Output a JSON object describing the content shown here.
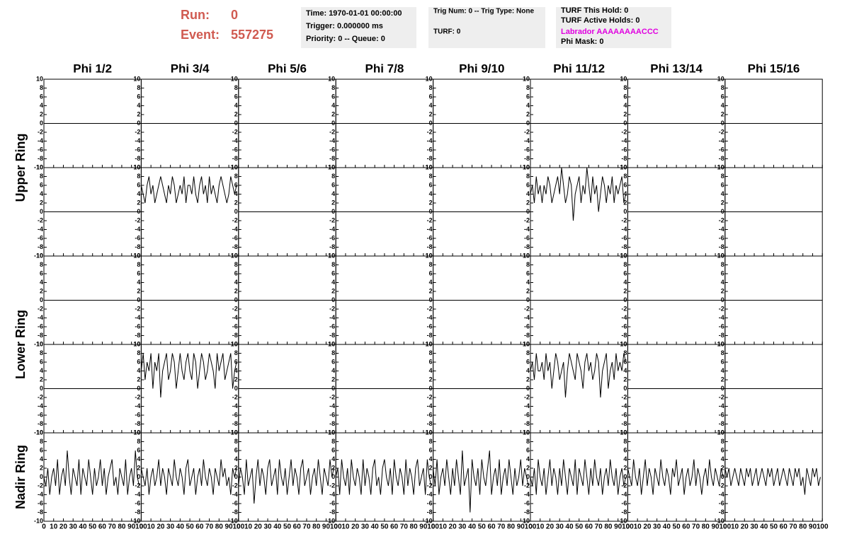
{
  "header": {
    "run_label": "Run:",
    "run": 0,
    "event_label": "Event:",
    "event": 557275,
    "info_boxes": [
      [
        "Time: 1970-01-01 00:00:00",
        "Trigger: 0.000000 ms",
        "Priority: 0 -- Queue: 0"
      ],
      [
        "Trig Num: 0 -- Trig Type: None",
        "TURF: 0"
      ],
      [
        "TURF This Hold: 0",
        "TURF Active Holds: 0",
        "Labrador AAAAAAAACCC",
        "Phi Mask: 0"
      ]
    ]
  },
  "chart_data": {
    "type": "line",
    "columns": [
      "Phi 1/2",
      "Phi 3/4",
      "Phi 5/6",
      "Phi 7/8",
      "Phi 9/10",
      "Phi 11/12",
      "Phi 13/14",
      "Phi 15/16"
    ],
    "rows": [
      "Upper Ring",
      "Lower Ring",
      "Nadir Ring"
    ],
    "xlim": [
      0,
      100
    ],
    "xticks": [
      0,
      10,
      20,
      30,
      40,
      50,
      60,
      70,
      80,
      90,
      100
    ],
    "ylim": [
      -10,
      10
    ],
    "yticks": [
      -10,
      -8,
      -6,
      -4,
      -2,
      0,
      2,
      4,
      6,
      8,
      10
    ],
    "color": "#000000",
    "x": [
      0,
      2,
      4,
      6,
      8,
      10,
      12,
      14,
      16,
      18,
      20,
      22,
      24,
      26,
      28,
      30,
      32,
      34,
      36,
      38,
      40,
      42,
      44,
      46,
      48,
      50,
      52,
      54,
      56,
      58,
      60,
      62,
      64,
      66,
      68,
      70,
      72,
      74,
      76,
      78,
      80,
      82,
      84,
      86,
      88,
      90,
      92,
      94,
      96,
      98
    ],
    "series": [
      {
        "x": [
          0,
          100
        ],
        "values": [
          0,
          0
        ]
      },
      {
        "x": [
          0,
          100
        ],
        "values": [
          0,
          0
        ]
      },
      {
        "x": [
          0,
          100
        ],
        "values": [
          0,
          0
        ]
      },
      {
        "x": [
          0,
          100
        ],
        "values": [
          0,
          0
        ]
      },
      {
        "x": [
          0,
          100
        ],
        "values": [
          0,
          0
        ]
      },
      {
        "x": [
          0,
          100
        ],
        "values": [
          0,
          0
        ]
      },
      {
        "x": [
          0,
          100
        ],
        "values": [
          0,
          0
        ]
      },
      {
        "x": [
          0,
          100
        ],
        "values": [
          0,
          0
        ]
      },
      {
        "x": [
          0,
          100
        ],
        "values": [
          0,
          0
        ]
      },
      {
        "values": [
          6,
          4,
          2,
          6,
          8,
          4,
          6,
          2,
          4,
          6,
          8,
          6,
          4,
          2,
          6,
          4,
          8,
          6,
          2,
          4,
          6,
          4,
          8,
          2,
          6,
          6,
          4,
          8,
          4,
          2,
          6,
          8,
          4,
          6,
          2,
          8,
          4,
          6,
          4,
          2,
          6,
          8,
          6,
          4,
          2,
          4,
          8,
          6,
          4,
          6
        ]
      },
      {
        "x": [
          0,
          100
        ],
        "values": [
          0,
          0
        ]
      },
      {
        "x": [
          0,
          100
        ],
        "values": [
          0,
          0
        ]
      },
      {
        "x": [
          0,
          100
        ],
        "values": [
          0,
          0
        ]
      },
      {
        "values": [
          4,
          6,
          2,
          8,
          4,
          6,
          2,
          6,
          4,
          8,
          6,
          2,
          4,
          6,
          8,
          4,
          10,
          6,
          2,
          4,
          8,
          6,
          -2,
          4,
          6,
          8,
          2,
          6,
          4,
          10,
          6,
          2,
          8,
          4,
          6,
          0,
          4,
          8,
          6,
          2,
          6,
          4,
          8,
          2,
          6,
          4,
          6,
          8,
          2,
          4
        ]
      },
      {
        "x": [
          0,
          100
        ],
        "values": [
          0,
          0
        ]
      },
      {
        "x": [
          0,
          100
        ],
        "values": [
          0,
          0
        ]
      },
      {
        "x": [
          0,
          100
        ],
        "values": [
          0,
          0
        ]
      },
      {
        "x": [
          0,
          100
        ],
        "values": [
          0,
          0
        ]
      },
      {
        "x": [
          0,
          100
        ],
        "values": [
          0,
          0
        ]
      },
      {
        "x": [
          0,
          100
        ],
        "values": [
          0,
          0
        ]
      },
      {
        "x": [
          0,
          100
        ],
        "values": [
          0,
          0
        ]
      },
      {
        "x": [
          0,
          100
        ],
        "values": [
          0,
          0
        ]
      },
      {
        "x": [
          0,
          100
        ],
        "values": [
          0,
          0
        ]
      },
      {
        "x": [
          0,
          100
        ],
        "values": [
          0,
          0
        ]
      },
      {
        "x": [
          0,
          100
        ],
        "values": [
          0,
          0
        ]
      },
      {
        "values": [
          4,
          8,
          2,
          6,
          4,
          8,
          0,
          6,
          4,
          8,
          -2,
          4,
          6,
          8,
          2,
          4,
          8,
          6,
          0,
          4,
          8,
          4,
          2,
          6,
          8,
          4,
          2,
          8,
          6,
          0,
          4,
          8,
          6,
          2,
          4,
          8,
          6,
          4,
          0,
          8,
          4,
          6,
          8,
          2,
          4,
          6,
          8,
          0,
          4,
          6
        ]
      },
      {
        "x": [
          0,
          100
        ],
        "values": [
          0,
          0
        ]
      },
      {
        "x": [
          0,
          100
        ],
        "values": [
          0,
          0
        ]
      },
      {
        "x": [
          0,
          100
        ],
        "values": [
          0,
          0
        ]
      },
      {
        "values": [
          4,
          6,
          2,
          8,
          4,
          4,
          6,
          2,
          8,
          4,
          6,
          0,
          4,
          8,
          6,
          2,
          4,
          6,
          -2,
          4,
          8,
          6,
          4,
          2,
          8,
          6,
          4,
          0,
          6,
          8,
          4,
          6,
          2,
          4,
          8,
          6,
          -2,
          4,
          6,
          8,
          0,
          4,
          6,
          2,
          8,
          4,
          6,
          4,
          8,
          6
        ]
      },
      {
        "x": [
          0,
          100
        ],
        "values": [
          0,
          0
        ]
      },
      {
        "x": [
          0,
          100
        ],
        "values": [
          0,
          0
        ]
      },
      {
        "values": [
          0,
          -2,
          2,
          -4,
          0,
          2,
          -2,
          4,
          -4,
          0,
          2,
          -2,
          6,
          0,
          -4,
          2,
          0,
          -2,
          4,
          -4,
          2,
          0,
          -2,
          4,
          0,
          -4,
          2,
          -2,
          0,
          4,
          -2,
          2,
          -4,
          0,
          2,
          4,
          -2,
          0,
          -4,
          2,
          0,
          -2,
          4,
          -4,
          0,
          2,
          -2,
          6,
          0,
          -2
        ]
      },
      {
        "values": [
          2,
          0,
          -2,
          2,
          -4,
          0,
          2,
          -2,
          0,
          4,
          -2,
          2,
          0,
          -4,
          2,
          0,
          -2,
          4,
          0,
          -2,
          2,
          0,
          -4,
          2,
          4,
          -2,
          0,
          2,
          -4,
          0,
          2,
          -2,
          4,
          0,
          -2,
          2,
          0,
          -4,
          2,
          0,
          -2,
          4,
          0,
          2,
          -2,
          0,
          -4,
          2,
          0,
          2
        ]
      },
      {
        "values": [
          -2,
          2,
          0,
          -4,
          4,
          -2,
          0,
          2,
          -6,
          0,
          4,
          -2,
          2,
          0,
          -4,
          2,
          4,
          -2,
          0,
          2,
          -4,
          4,
          0,
          -2,
          2,
          -4,
          0,
          4,
          -2,
          2,
          0,
          -4,
          2,
          4,
          -2,
          0,
          2,
          -4,
          0,
          2,
          -2,
          4,
          0,
          -4,
          2,
          0,
          -2,
          4,
          0,
          2
        ]
      },
      {
        "values": [
          0,
          2,
          -4,
          4,
          0,
          -2,
          2,
          -4,
          4,
          0,
          -2,
          2,
          0,
          -4,
          4,
          -2,
          2,
          0,
          -4,
          2,
          4,
          -2,
          0,
          -4,
          2,
          4,
          0,
          -2,
          2,
          -4,
          4,
          0,
          -2,
          2,
          0,
          -4,
          4,
          -2,
          2,
          0,
          -4,
          2,
          4,
          -2,
          0,
          2,
          -4,
          4,
          0,
          -2
        ]
      },
      {
        "values": [
          2,
          -2,
          4,
          -4,
          0,
          2,
          -2,
          4,
          0,
          -4,
          2,
          -2,
          4,
          0,
          -4,
          6,
          -2,
          0,
          2,
          -8,
          4,
          0,
          -2,
          2,
          -4,
          4,
          0,
          -2,
          2,
          6,
          -4,
          0,
          2,
          -2,
          4,
          -4,
          0,
          2,
          -2,
          4,
          0,
          -4,
          2,
          -2,
          0,
          4,
          -2,
          2,
          0,
          -2
        ]
      },
      {
        "values": [
          0,
          -2,
          2,
          -4,
          4,
          0,
          -2,
          2,
          -4,
          0,
          4,
          -2,
          2,
          0,
          -4,
          2,
          -2,
          4,
          0,
          -4,
          2,
          0,
          -2,
          4,
          -4,
          2,
          0,
          -2,
          4,
          0,
          -4,
          2,
          -2,
          4,
          0,
          -2,
          2,
          -4,
          0,
          2,
          -2,
          4,
          0,
          -2,
          2,
          -4,
          0,
          2,
          -2,
          0
        ]
      },
      {
        "values": [
          2,
          0,
          -2,
          4,
          0,
          -2,
          2,
          -4,
          0,
          4,
          -2,
          2,
          0,
          -4,
          2,
          0,
          -2,
          4,
          0,
          -2,
          2,
          0,
          -4,
          2,
          0,
          4,
          -2,
          0,
          2,
          -4,
          0,
          2,
          -2,
          0,
          4,
          -2,
          2,
          0,
          -4,
          0,
          2,
          -2,
          4,
          0,
          -2,
          2,
          0,
          -2,
          2,
          0
        ]
      },
      {
        "values": [
          2,
          0,
          2,
          -2,
          0,
          2,
          0,
          -2,
          2,
          0,
          -2,
          2,
          0,
          2,
          -2,
          0,
          2,
          -2,
          0,
          2,
          0,
          -2,
          2,
          0,
          2,
          -2,
          0,
          2,
          -2,
          0,
          2,
          0,
          -2,
          2,
          0,
          -2,
          2,
          0,
          2,
          -2,
          0,
          -4,
          2,
          0,
          -2,
          2,
          0,
          2,
          -2,
          0
        ]
      }
    ]
  }
}
